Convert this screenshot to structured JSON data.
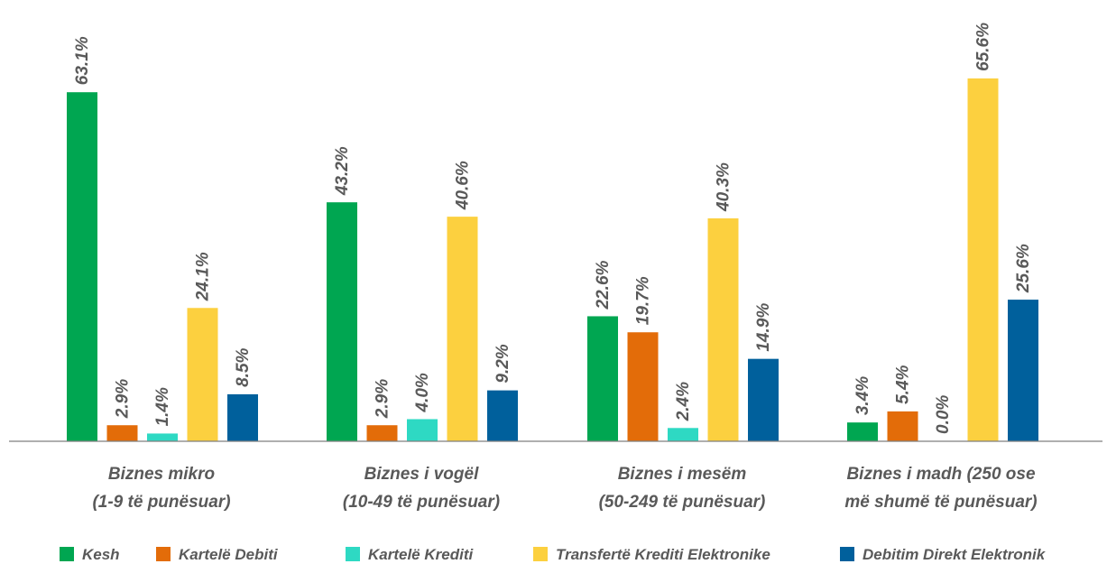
{
  "chart_data": {
    "type": "bar",
    "title": "",
    "xlabel": "",
    "ylabel": "",
    "ylim": [
      0,
      70
    ],
    "grid": false,
    "legend_position": "bottom",
    "categories": [
      [
        "Biznes mikro",
        "(1-9 të punësuar)"
      ],
      [
        "Biznes i vogël",
        "(10-49 të punësuar)"
      ],
      [
        "Biznes i mesëm",
        "(50-249 të punësuar)"
      ],
      [
        "Biznes i madh (250 ose",
        "më shumë të punësuar)"
      ]
    ],
    "series": [
      {
        "name": "Kesh",
        "color": "#00a651",
        "values": [
          63.1,
          43.2,
          22.6,
          3.4
        ],
        "labels": [
          "63.1%",
          "43.2%",
          "22.6%",
          "3.4%"
        ]
      },
      {
        "name": "Kartelë Debiti",
        "color": "#e36c09",
        "values": [
          2.9,
          2.9,
          19.7,
          5.4
        ],
        "labels": [
          "2.9%",
          "2.9%",
          "19.7%",
          "5.4%"
        ]
      },
      {
        "name": "Kartelë Krediti",
        "color": "#2ed9c3",
        "values": [
          1.4,
          4.0,
          2.4,
          0.0
        ],
        "labels": [
          "1.4%",
          "4.0%",
          "2.4%",
          "0.0%"
        ]
      },
      {
        "name": "Transfertë Krediti Elektronike",
        "color": "#fcd03f",
        "values": [
          24.1,
          40.6,
          40.3,
          65.6
        ],
        "labels": [
          "24.1%",
          "40.6%",
          "40.3%",
          "65.6%"
        ]
      },
      {
        "name": "Debitim Direkt Elektronik",
        "color": "#00609c",
        "values": [
          8.5,
          9.2,
          14.9,
          25.6
        ],
        "labels": [
          "8.5%",
          "9.2%",
          "14.9%",
          "25.6%"
        ]
      }
    ]
  }
}
